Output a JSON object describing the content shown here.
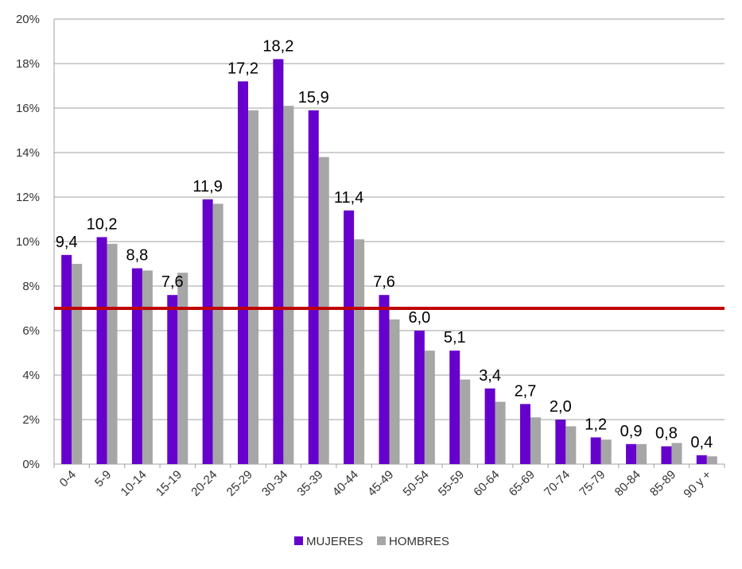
{
  "chart_data": {
    "type": "bar",
    "categories": [
      "0-4",
      "5-9",
      "10-14",
      "15-19",
      "20-24",
      "25-29",
      "30-34",
      "35-39",
      "40-44",
      "45-49",
      "50-54",
      "55-59",
      "60-64",
      "65-69",
      "70-74",
      "75-79",
      "80-84",
      "85-89",
      "90 y +"
    ],
    "series": [
      {
        "name": "MUJERES",
        "color": "#6600cc",
        "values": [
          9.4,
          10.2,
          8.8,
          7.6,
          11.9,
          17.2,
          18.2,
          15.9,
          11.4,
          7.6,
          6.0,
          5.1,
          3.4,
          2.7,
          2.0,
          1.2,
          0.9,
          0.8,
          0.4
        ],
        "labels": [
          "9,4",
          "10,2",
          "8,8",
          "7,6",
          "11,9",
          "17,2",
          "18,2",
          "15,9",
          "11,4",
          "7,6",
          "6,0",
          "5,1",
          "3,4",
          "2,7",
          "2,0",
          "1,2",
          "0,9",
          "0,8",
          "0,4"
        ]
      },
      {
        "name": "HOMBRES",
        "color": "#a6a6a6",
        "values": [
          9.0,
          9.9,
          8.7,
          8.6,
          11.7,
          15.9,
          16.1,
          13.8,
          10.1,
          6.5,
          5.1,
          3.8,
          2.8,
          2.1,
          1.7,
          1.1,
          0.9,
          0.95,
          0.35
        ]
      }
    ],
    "reference_line": {
      "value": 7.0,
      "color": "#c00000"
    },
    "yticks": [
      "0%",
      "2%",
      "4%",
      "6%",
      "8%",
      "10%",
      "12%",
      "14%",
      "16%",
      "18%",
      "20%"
    ],
    "ylim": [
      0,
      20
    ],
    "grid": true,
    "legend_position": "bottom",
    "title": "",
    "xlabel": "",
    "ylabel": ""
  }
}
